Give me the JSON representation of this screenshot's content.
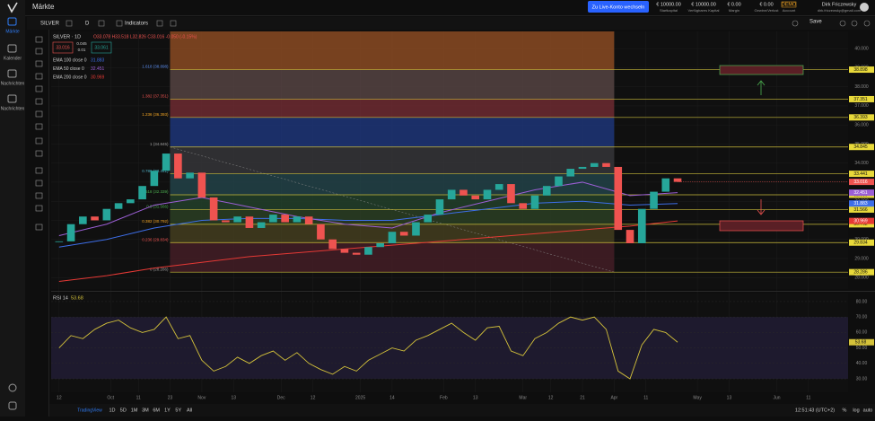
{
  "sidebar": {
    "nav": [
      "Märkte",
      "Kalender",
      "Nachrichten",
      "Nachrichten"
    ]
  },
  "header": {
    "title": "Märkte",
    "live_button": "Zu Live-Konto wechseln",
    "stats": [
      {
        "value": "€ 10000.00",
        "label": "Startkapital"
      },
      {
        "value": "€ 10000.00",
        "label": "Verfügbares Kapital"
      },
      {
        "value": "€ 0.00",
        "label": "Margin"
      },
      {
        "value": "€ 0.00",
        "label": "Gewinn/Verlust"
      },
      {
        "value": "DEMO",
        "label": "Account"
      }
    ],
    "user": {
      "name": "Dirk Friczewsky",
      "email": "dirk.friczewsky@gmail.com"
    }
  },
  "toolbar": {
    "symbol": "SILVER",
    "interval": "D",
    "indicators": "Indicators",
    "save": "Save"
  },
  "bottom_bar": {
    "ranges": [
      "1D",
      "5D",
      "1M",
      "3M",
      "6M",
      "1Y",
      "5Y",
      "All"
    ],
    "time": "12:51:43 (UTC+2)",
    "options": [
      "%",
      "log",
      "auto"
    ],
    "brand": "TradingView"
  },
  "chart_data": [
    {
      "type": "candlestick",
      "title": "SILVER · 1D",
      "ohlc_text": "O33.078 H33.518 L32.826 C33.016 -0.050 (-0.15%)",
      "sell": "33.016",
      "spread": "0.045",
      "quantity": "0.01",
      "buy": "33.061",
      "up_color": "#26a69a",
      "down_color": "#ef5350",
      "x": [
        0,
        3,
        6,
        9,
        12,
        15,
        18,
        21,
        24,
        27,
        30,
        33,
        36,
        39,
        42,
        45,
        48,
        51,
        54,
        57,
        60,
        63,
        66,
        69,
        72,
        75,
        78,
        81,
        84,
        87,
        90,
        93,
        96,
        99,
        102,
        105,
        108,
        111,
        114,
        117,
        120,
        123,
        126,
        129,
        132,
        135,
        138,
        141,
        144,
        147,
        150,
        153,
        156
      ],
      "close": [
        29.9,
        30.8,
        31.2,
        31.0,
        31.6,
        31.9,
        32.1,
        32.8,
        33.6,
        34.5,
        33.2,
        33.5,
        32.2,
        31.0,
        30.9,
        31.2,
        30.6,
        30.9,
        31.3,
        30.9,
        31.2,
        30.8,
        30.0,
        29.5,
        29.3,
        29.2,
        29.6,
        29.8,
        30.4,
        30.2,
        30.9,
        31.3,
        32.1,
        32.6,
        32.3,
        32.1,
        32.6,
        32.9,
        31.9,
        31.6,
        32.3,
        32.8,
        33.3,
        33.7,
        33.8,
        34.0,
        33.8,
        30.5,
        29.8,
        31.6,
        32.5,
        33.2,
        33.016
      ],
      "ema_x": [
        0,
        12,
        24,
        36,
        48,
        60,
        72,
        84,
        96,
        108,
        120,
        132,
        144,
        156
      ],
      "ema": [
        {
          "name": "EMA 100 close 0",
          "color": "#3d6ee8",
          "values": [
            29.6,
            30.0,
            30.6,
            31.0,
            31.1,
            31.1,
            31.0,
            31.0,
            31.3,
            31.6,
            31.9,
            32.0,
            31.8,
            31.883
          ]
        },
        {
          "name": "EMA 50 close 0",
          "color": "#9c5fd6",
          "values": [
            30.2,
            30.8,
            31.8,
            32.2,
            31.7,
            31.2,
            30.8,
            30.6,
            31.4,
            32.0,
            32.6,
            33.0,
            32.3,
            32.451
          ]
        },
        {
          "name": "EMA 200 close 0",
          "color": "#e53935",
          "values": [
            27.8,
            28.1,
            28.5,
            28.8,
            29.1,
            29.3,
            29.5,
            29.7,
            29.9,
            30.1,
            30.3,
            30.5,
            30.7,
            30.969
          ]
        }
      ],
      "fib_start_x": 28,
      "fib_end_x": 140,
      "fib_line_color": "#c9bb3a",
      "fib_top_fill": "#8a4a22",
      "fib_levels": [
        {
          "label": "1.618 (38.898)",
          "value": 38.898,
          "color": "#5b8def",
          "fill": "#5e4a48"
        },
        {
          "label": "1.382 (37.351)",
          "value": 37.351,
          "color": "#ef5350",
          "fill": "#7a2e36"
        },
        {
          "label": "1.236 (36.393)",
          "value": 36.393,
          "color": "#f5a623",
          "fill": "#1f3a86"
        },
        {
          "label": "1 (34.845)",
          "value": 34.845,
          "color": "#9e9e9e",
          "fill": "#3a3a3e"
        },
        {
          "label": "0.786 (33.441)",
          "value": 33.441,
          "color": "#4fb0c6",
          "fill": "#24484f"
        },
        {
          "label": "0.618 (32.339)",
          "value": 32.339,
          "color": "#4caf50",
          "fill": "#24452e"
        },
        {
          "label": "0.5 (31.566)",
          "value": 31.566,
          "color": "#4caf50",
          "fill": "#2d4426"
        },
        {
          "label": "0.382 (30.792)",
          "value": 30.792,
          "color": "#f5a623",
          "fill": "#4a4320"
        },
        {
          "label": "0.236 (29.834)",
          "value": 29.834,
          "color": "#ef5350",
          "fill": "#4a1f28"
        },
        {
          "label": "0 (28.286)",
          "value": 28.286,
          "color": "#9e9e9e"
        }
      ],
      "xlim": [
        -2,
        199
      ],
      "ylim": [
        27.4,
        40.9
      ],
      "yticks": [
        {
          "value": 28,
          "label": "28.000"
        },
        {
          "value": 29,
          "label": "29.000"
        },
        {
          "value": 30,
          "label": "30.000"
        },
        {
          "value": 31,
          "label": "31.000"
        },
        {
          "value": 32,
          "label": "32.000"
        },
        {
          "value": 33,
          "label": "33.000"
        },
        {
          "value": 34,
          "label": "34.000"
        },
        {
          "value": 35,
          "label": "35.000"
        },
        {
          "value": 36,
          "label": "36.000"
        },
        {
          "value": 37,
          "label": "37.000"
        },
        {
          "value": 38,
          "label": "38.000"
        },
        {
          "value": 39,
          "label": "39.000"
        },
        {
          "value": 40,
          "label": "40.000"
        }
      ],
      "xticks": [
        {
          "value": 0,
          "label": "12"
        },
        {
          "value": 13,
          "label": "Oct"
        },
        {
          "value": 20,
          "label": "11"
        },
        {
          "value": 28,
          "label": "23"
        },
        {
          "value": 36,
          "label": "Nov"
        },
        {
          "value": 44,
          "label": "13"
        },
        {
          "value": 56,
          "label": "Dec"
        },
        {
          "value": 64,
          "label": "12"
        },
        {
          "value": 76,
          "label": "2025"
        },
        {
          "value": 84,
          "label": "14"
        },
        {
          "value": 97,
          "label": "Feb"
        },
        {
          "value": 105,
          "label": "13"
        },
        {
          "value": 117,
          "label": "Mar"
        },
        {
          "value": 124,
          "label": "12"
        },
        {
          "value": 132,
          "label": "21"
        },
        {
          "value": 140,
          "label": "Apr"
        },
        {
          "value": 148,
          "label": "11"
        },
        {
          "value": 161,
          "label": "May"
        },
        {
          "value": 169,
          "label": "13"
        },
        {
          "value": 181,
          "label": "Jun"
        },
        {
          "value": 189,
          "label": "11"
        }
      ],
      "grid": true
    },
    {
      "type": "line",
      "title": "RSI 14",
      "color": "#d4c23a",
      "values": [
        50,
        58,
        56,
        62,
        66,
        68,
        63,
        60,
        62,
        70,
        56,
        58,
        42,
        35,
        38,
        44,
        40,
        45,
        48,
        42,
        47,
        40,
        36,
        33,
        38,
        35,
        42,
        46,
        50,
        48,
        55,
        58,
        62,
        66,
        60,
        55,
        63,
        64,
        48,
        45,
        56,
        60,
        66,
        70,
        68,
        70,
        62,
        35,
        30,
        52,
        62,
        60,
        53.68
      ],
      "ylim": [
        21.3,
        85.2
      ],
      "yticks": [
        {
          "value": 30,
          "label": "30.00"
        },
        {
          "value": 40,
          "label": "40.00"
        },
        {
          "value": 50,
          "label": "50.00"
        },
        {
          "value": 60,
          "label": "60.00"
        },
        {
          "value": 70,
          "label": "70.00"
        },
        {
          "value": 80,
          "label": "80.00"
        }
      ],
      "band": [
        30,
        70
      ]
    }
  ]
}
